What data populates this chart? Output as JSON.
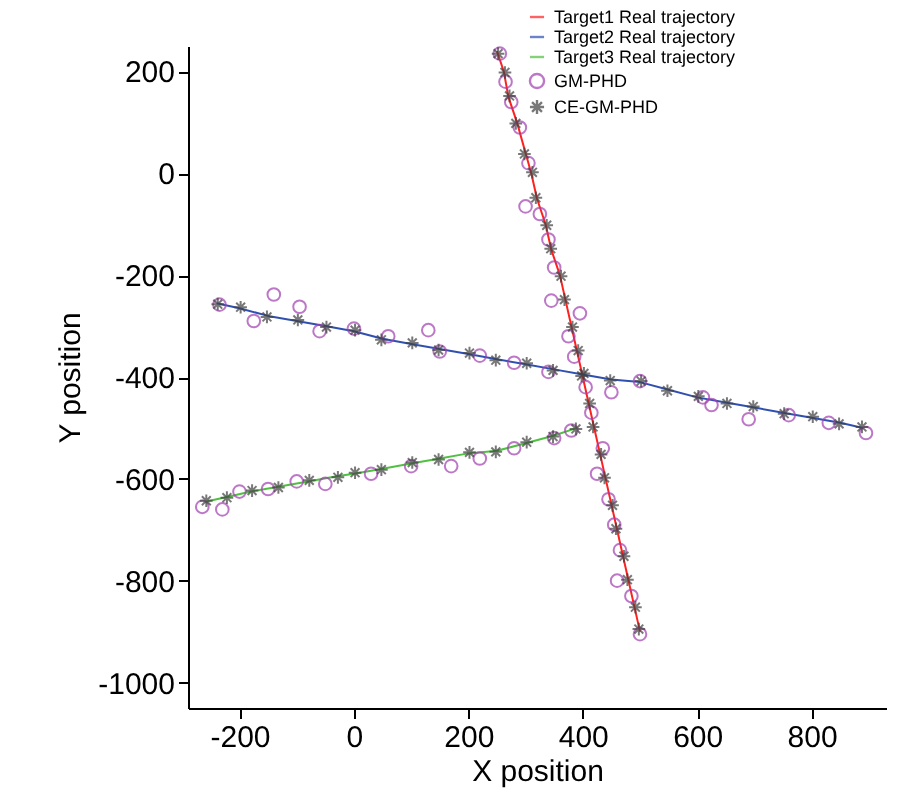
{
  "chart_data": {
    "type": "scatter",
    "xlabel": "X position",
    "ylabel": "Y position",
    "xlim": [
      -290,
      930
    ],
    "ylim": [
      -1050,
      250
    ],
    "xticks": [
      -200,
      0,
      200,
      400,
      600,
      800
    ],
    "yticks": [
      -1000,
      -800,
      -600,
      -400,
      -200,
      0,
      200
    ],
    "grid": false,
    "legend": "top right",
    "series": [
      {
        "name": "Target1 Real trajectory",
        "type": "line",
        "color": "#ff2020",
        "line_style": "solid",
        "x": [
          250,
          262,
          270,
          285,
          300,
          310,
          320,
          335,
          345,
          360,
          370,
          380,
          390,
          400,
          410,
          420,
          430,
          440,
          450,
          460,
          470,
          480,
          490,
          500
        ],
        "values": [
          240,
          200,
          150,
          100,
          40,
          0,
          -50,
          -100,
          -150,
          -200,
          -250,
          -300,
          -350,
          -400,
          -450,
          -500,
          -550,
          -600,
          -650,
          -700,
          -750,
          -800,
          -850,
          -900
        ]
      },
      {
        "name": "Target2 Real trajectory",
        "type": "line",
        "color": "#3050b0",
        "line_style": "solid",
        "x": [
          -240,
          -200,
          -150,
          -100,
          -50,
          0,
          50,
          100,
          150,
          200,
          250,
          300,
          350,
          400,
          450,
          500,
          550,
          600,
          650,
          700,
          750,
          800,
          850,
          890
        ],
        "values": [
          -255,
          -265,
          -280,
          -290,
          -300,
          -310,
          -325,
          -335,
          -345,
          -355,
          -365,
          -375,
          -385,
          -395,
          -405,
          -410,
          -425,
          -440,
          -450,
          -460,
          -470,
          -480,
          -490,
          -500
        ]
      },
      {
        "name": "Target3 Real trajectory",
        "type": "line",
        "color": "#50c040",
        "line_style": "solid",
        "x": [
          -260,
          -220,
          -180,
          -130,
          -80,
          -30,
          0,
          50,
          100,
          150,
          200,
          250,
          300,
          350,
          390
        ],
        "values": [
          -645,
          -635,
          -625,
          -615,
          -605,
          -595,
          -590,
          -580,
          -570,
          -560,
          -550,
          -545,
          -530,
          -515,
          -500
        ]
      },
      {
        "name": "GM-PHD",
        "marker": "circle",
        "color": "#a040b0",
        "x": [
          255,
          265,
          275,
          290,
          305,
          300,
          325,
          340,
          350,
          345,
          395,
          375,
          385,
          405,
          415,
          435,
          425,
          445,
          455,
          465,
          460,
          485,
          500,
          -235,
          -140,
          -175,
          -95,
          -60,
          0,
          60,
          130,
          150,
          220,
          280,
          340,
          450,
          500,
          610,
          625,
          690,
          760,
          830,
          895,
          -265,
          -230,
          -200,
          -150,
          -100,
          -50,
          30,
          100,
          170,
          220,
          280,
          350,
          380
        ],
        "values": [
          235,
          180,
          140,
          90,
          20,
          -65,
          -80,
          -130,
          -185,
          -250,
          -275,
          -320,
          -360,
          -420,
          -470,
          -540,
          -590,
          -640,
          -690,
          -740,
          -800,
          -830,
          -905,
          -258,
          -238,
          -290,
          -262,
          -310,
          -305,
          -320,
          -308,
          -350,
          -358,
          -372,
          -390,
          -430,
          -408,
          -440,
          -455,
          -483,
          -475,
          -490,
          -510,
          -655,
          -660,
          -625,
          -620,
          -605,
          -610,
          -590,
          -575,
          -575,
          -560,
          -540,
          -520,
          -505
        ]
      },
      {
        "name": "CE-GM-PHD",
        "marker": "cross",
        "color": "#404040",
        "x": [
          252,
          264,
          272,
          283,
          298,
          312,
          318,
          337,
          344,
          362,
          368,
          382,
          392,
          398,
          412,
          418,
          432,
          438,
          452,
          458,
          472,
          478,
          492,
          498,
          -238,
          -198,
          -152,
          -98,
          -48,
          2,
          48,
          102,
          148,
          202,
          248,
          302,
          348,
          402,
          448,
          502,
          548,
          602,
          652,
          698,
          752,
          802,
          848,
          888,
          -258,
          -222,
          -178,
          -132,
          -78,
          -28,
          2,
          48,
          102,
          148,
          202,
          248,
          302,
          348,
          388
        ],
        "values": [
          235,
          198,
          152,
          98,
          38,
          2,
          -48,
          -102,
          -148,
          -202,
          -248,
          -302,
          -348,
          -398,
          -452,
          -498,
          -552,
          -598,
          -652,
          -698,
          -752,
          -798,
          -852,
          -895,
          -257,
          -263,
          -282,
          -288,
          -302,
          -308,
          -327,
          -333,
          -347,
          -353,
          -367,
          -373,
          -387,
          -393,
          -407,
          -408,
          -427,
          -438,
          -452,
          -458,
          -472,
          -478,
          -492,
          -498,
          -643,
          -637,
          -623,
          -617,
          -603,
          -597,
          -588,
          -582,
          -568,
          -562,
          -548,
          -547,
          -528,
          -517,
          -502
        ]
      }
    ]
  }
}
